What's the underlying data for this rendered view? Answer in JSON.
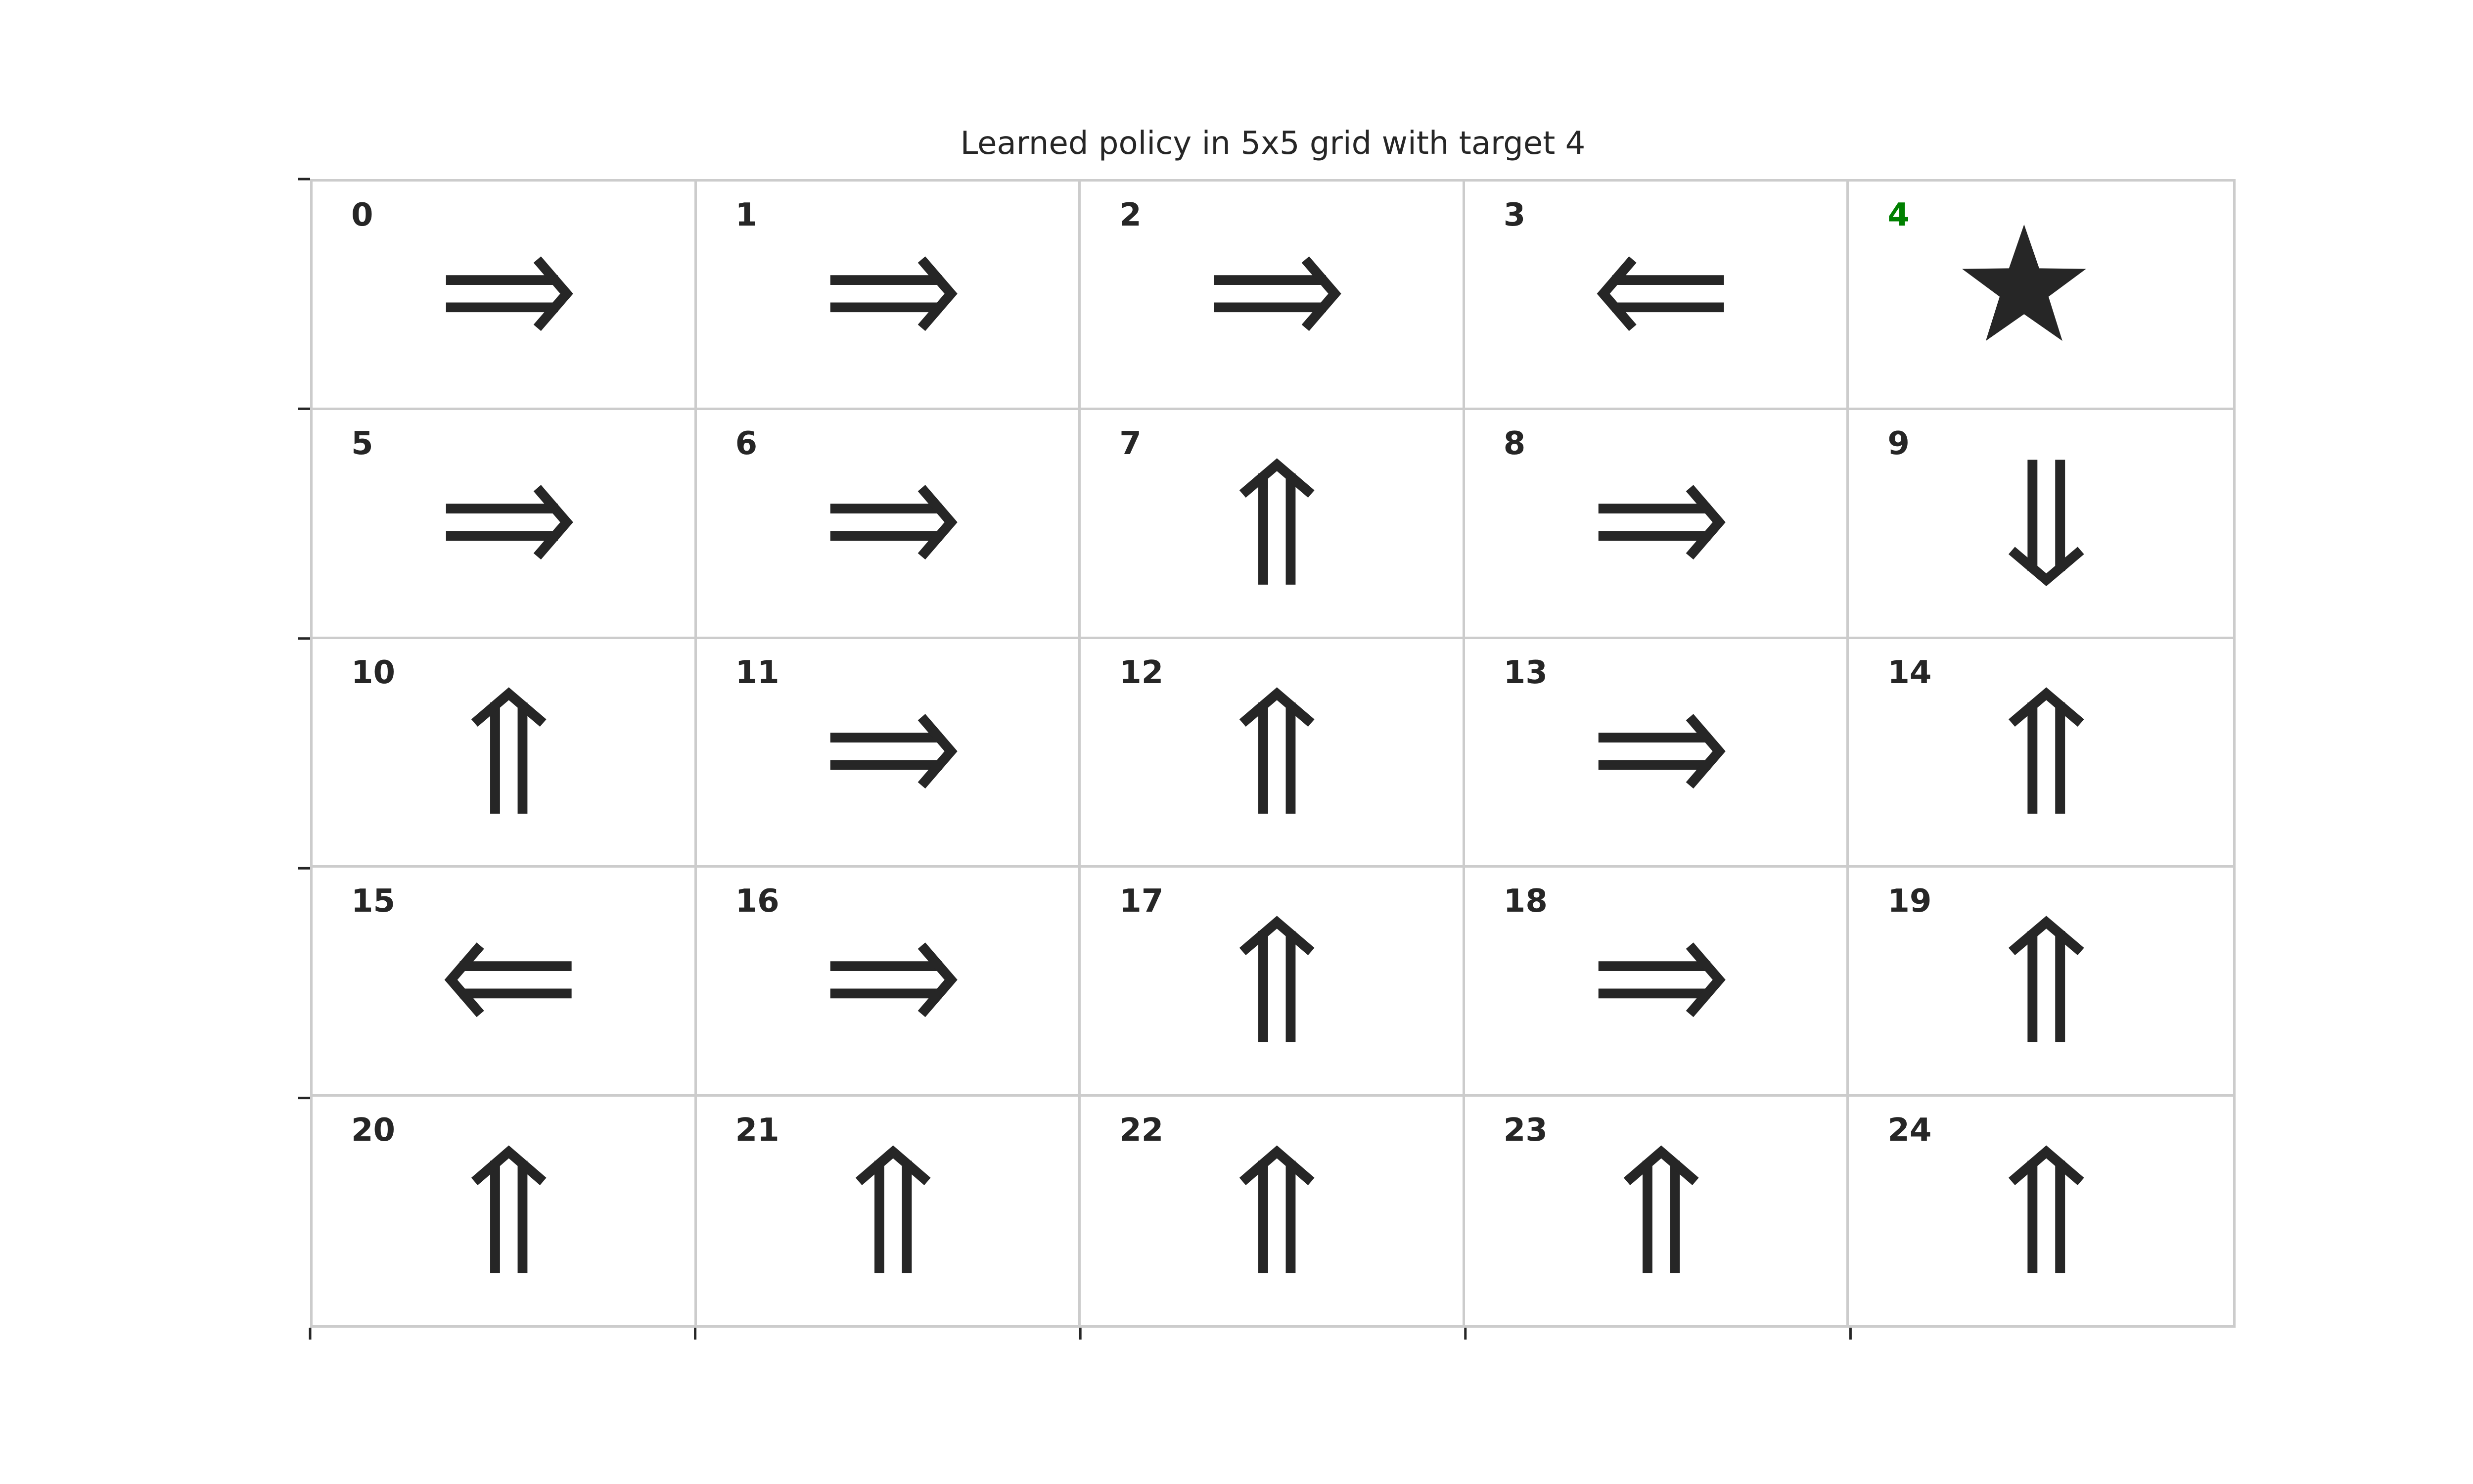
{
  "title": "Learned policy in 5x5 grid with target 4",
  "grid": {
    "rows": 5,
    "cols": 5,
    "target": 4,
    "cells": [
      {
        "index": "0",
        "action": "right"
      },
      {
        "index": "1",
        "action": "right"
      },
      {
        "index": "2",
        "action": "right"
      },
      {
        "index": "3",
        "action": "left"
      },
      {
        "index": "4",
        "action": "target"
      },
      {
        "index": "5",
        "action": "right"
      },
      {
        "index": "6",
        "action": "right"
      },
      {
        "index": "7",
        "action": "up"
      },
      {
        "index": "8",
        "action": "right"
      },
      {
        "index": "9",
        "action": "down"
      },
      {
        "index": "10",
        "action": "up"
      },
      {
        "index": "11",
        "action": "right"
      },
      {
        "index": "12",
        "action": "up"
      },
      {
        "index": "13",
        "action": "right"
      },
      {
        "index": "14",
        "action": "up"
      },
      {
        "index": "15",
        "action": "left"
      },
      {
        "index": "16",
        "action": "right"
      },
      {
        "index": "17",
        "action": "up"
      },
      {
        "index": "18",
        "action": "right"
      },
      {
        "index": "19",
        "action": "up"
      },
      {
        "index": "20",
        "action": "up"
      },
      {
        "index": "21",
        "action": "up"
      },
      {
        "index": "22",
        "action": "up"
      },
      {
        "index": "23",
        "action": "up"
      },
      {
        "index": "24",
        "action": "up"
      }
    ]
  },
  "icons": {
    "right": "double-arrow-right-icon",
    "left": "double-arrow-left-icon",
    "up": "double-arrow-up-icon",
    "down": "double-arrow-down-icon",
    "target": "star-icon"
  },
  "colors": {
    "icon": "#262626",
    "index_text": "#262626",
    "target_index": "#008000",
    "grid_line": "#cccccc",
    "tick": "#262626",
    "background": "#ffffff"
  }
}
